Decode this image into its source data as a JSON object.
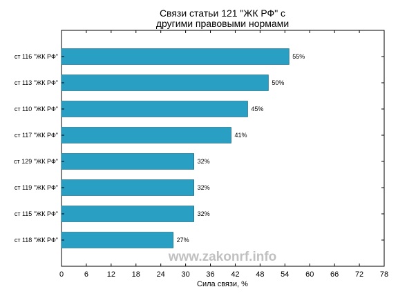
{
  "chart_data": {
    "type": "bar",
    "orientation": "horizontal",
    "title_lines": [
      "Связи статьи 121 \"ЖК РФ\" с",
      "другими правовыми нормами"
    ],
    "xlabel": "Сила связи, %",
    "ylabel": "",
    "xlim": [
      0,
      78
    ],
    "xticks": [
      0,
      6,
      12,
      18,
      24,
      30,
      36,
      42,
      48,
      54,
      60,
      66,
      72,
      78
    ],
    "grid": false,
    "categories": [
      "ст 116 \"ЖК РФ\"",
      "ст 113 \"ЖК РФ\"",
      "ст 110 \"ЖК РФ\"",
      "ст 117 \"ЖК РФ\"",
      "ст 129 \"ЖК РФ\"",
      "ст 119 \"ЖК РФ\"",
      "ст 115 \"ЖК РФ\"",
      "ст 118 \"ЖК РФ\""
    ],
    "values": [
      55,
      50,
      45,
      41,
      32,
      32,
      32,
      27
    ],
    "value_labels": [
      "55%",
      "50%",
      "45%",
      "41%",
      "32%",
      "32%",
      "32%",
      "27%"
    ],
    "bar_color": "#2a9fc4",
    "bar_edge_color": "#1a6f8a"
  },
  "watermark": "www.zakonrf.info"
}
